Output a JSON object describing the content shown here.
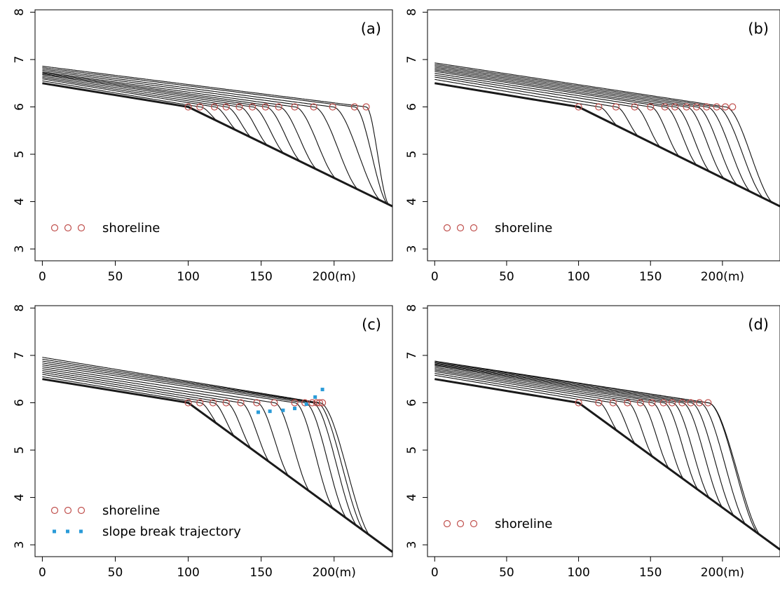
{
  "chart_data": [
    {
      "type": "line",
      "panel_label": "(a)",
      "xlim": [
        -5,
        240
      ],
      "ylim": [
        2.75,
        8.05
      ],
      "x_ticks": [
        "0",
        "50",
        "100",
        "150",
        "200(m)"
      ],
      "x_tick_values": [
        0,
        50,
        100,
        150,
        200
      ],
      "y_ticks": [
        "3",
        "4",
        "5",
        "6",
        "7",
        "8"
      ],
      "y_tick_values": [
        3,
        4,
        5,
        6,
        7,
        8
      ],
      "basement": {
        "x": [
          0,
          100,
          240
        ],
        "y": [
          6.5,
          6.0,
          3.9
        ]
      },
      "profile_tops": [
        6.5,
        6.55,
        6.59,
        6.62,
        6.65,
        6.68,
        6.7,
        6.72,
        6.74,
        6.77,
        6.8,
        6.83,
        6.86
      ],
      "shoreline": {
        "x": [
          100,
          108,
          118,
          126,
          135,
          144,
          153,
          162,
          173,
          186,
          199,
          214,
          222
        ],
        "y": 6.0
      },
      "legend": [
        {
          "symbol": "circles",
          "label": "shoreline"
        }
      ]
    },
    {
      "type": "line",
      "panel_label": "(b)",
      "xlim": [
        -5,
        240
      ],
      "ylim": [
        2.75,
        8.05
      ],
      "x_ticks": [
        "0",
        "50",
        "100",
        "150",
        "200(m)"
      ],
      "x_tick_values": [
        0,
        50,
        100,
        150,
        200
      ],
      "y_ticks": [
        "3",
        "4",
        "5",
        "6",
        "7",
        "8"
      ],
      "y_tick_values": [
        3,
        4,
        5,
        6,
        7,
        8
      ],
      "basement": {
        "x": [
          0,
          100,
          240
        ],
        "y": [
          6.5,
          6.0,
          3.9
        ]
      },
      "profile_tops": [
        6.5,
        6.58,
        6.63,
        6.67,
        6.71,
        6.75,
        6.78,
        6.81,
        6.84,
        6.87,
        6.9,
        6.93
      ],
      "shoreline": {
        "x": [
          100,
          114,
          126,
          139,
          150,
          160,
          167,
          175,
          182,
          189,
          196,
          202,
          207
        ],
        "y": 6.0
      },
      "legend": [
        {
          "symbol": "circles",
          "label": "shoreline"
        }
      ]
    },
    {
      "type": "line",
      "panel_label": "(c)",
      "xlim": [
        -5,
        240
      ],
      "ylim": [
        2.75,
        8.05
      ],
      "x_ticks": [
        "0",
        "50",
        "100",
        "150",
        "200(m)"
      ],
      "x_tick_values": [
        0,
        50,
        100,
        150,
        200
      ],
      "y_ticks": [
        "3",
        "4",
        "5",
        "6",
        "7",
        "8"
      ],
      "y_tick_values": [
        3,
        4,
        5,
        6,
        7,
        8
      ],
      "basement": {
        "x": [
          0,
          100,
          240
        ],
        "y": [
          6.5,
          6.0,
          2.85
        ]
      },
      "profile_tops": [
        6.5,
        6.55,
        6.6,
        6.64,
        6.68,
        6.72,
        6.76,
        6.8,
        6.84,
        6.88,
        6.92,
        6.96
      ],
      "shoreline": {
        "x": [
          100,
          108,
          117,
          126,
          136,
          147,
          159,
          173,
          180,
          185,
          188,
          190,
          192
        ],
        "y": 6.0
      },
      "slope_break": {
        "x": [
          148,
          156,
          165,
          173,
          181,
          187,
          192
        ],
        "y": [
          5.8,
          5.82,
          5.84,
          5.88,
          5.97,
          6.12,
          6.28
        ]
      },
      "legend": [
        {
          "symbol": "circles",
          "label": "shoreline"
        },
        {
          "symbol": "dots",
          "label": "slope break trajectory"
        }
      ]
    },
    {
      "type": "line",
      "panel_label": "(d)",
      "xlim": [
        -5,
        240
      ],
      "ylim": [
        2.75,
        8.05
      ],
      "x_ticks": [
        "0",
        "50",
        "100",
        "150",
        "200(m)"
      ],
      "x_tick_values": [
        0,
        50,
        100,
        150,
        200
      ],
      "y_ticks": [
        "3",
        "4",
        "5",
        "6",
        "7",
        "8"
      ],
      "y_tick_values": [
        3,
        4,
        5,
        6,
        7,
        8
      ],
      "basement": {
        "x": [
          0,
          100,
          240
        ],
        "y": [
          6.5,
          6.0,
          2.9
        ]
      },
      "profile_tops": [
        6.5,
        6.58,
        6.62,
        6.66,
        6.69,
        6.72,
        6.75,
        6.78,
        6.8,
        6.82,
        6.84,
        6.86,
        6.88
      ],
      "shoreline": {
        "x": [
          100,
          114,
          124,
          134,
          143,
          151,
          159,
          165,
          172,
          178,
          184,
          190
        ],
        "y": 6.0
      },
      "legend": [
        {
          "symbol": "circles",
          "label": "shoreline"
        }
      ]
    }
  ]
}
